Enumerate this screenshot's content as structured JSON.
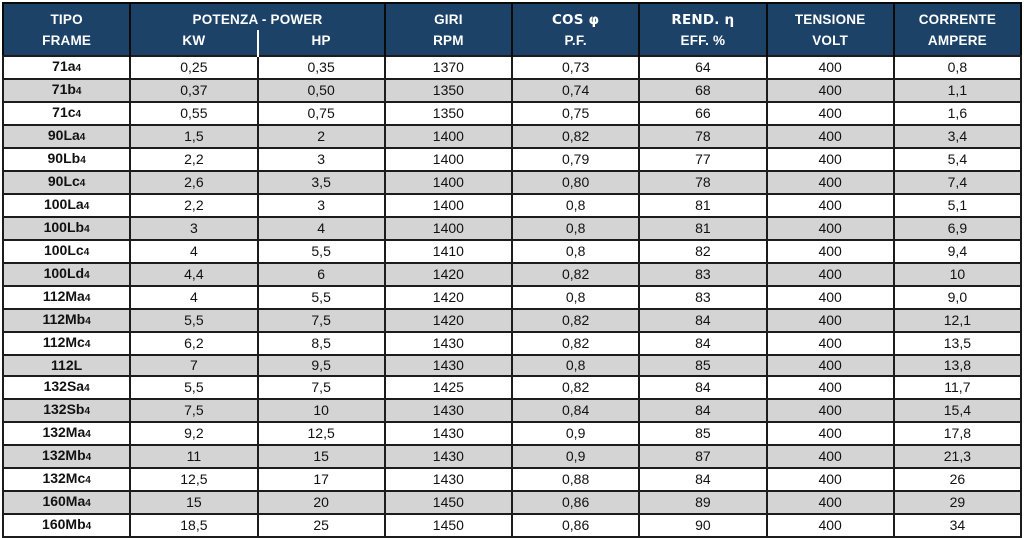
{
  "table": {
    "header": {
      "tipo": "TIPO",
      "frame": "FRAME",
      "power_group": "POTENZA - POWER",
      "kw": "KW",
      "hp": "HP",
      "giri": "GIRI",
      "rpm": "RPM",
      "cos": "COS φ",
      "pf": "P.F.",
      "rend": "REND. η",
      "eff": "EFF. %",
      "tensione": "TENSIONE",
      "volt": "VOLT",
      "corrente": "CORRENTE",
      "ampere": "AMPERE"
    },
    "rows": [
      {
        "frame": "71a",
        "frame_sub": "4",
        "kw": "0,25",
        "hp": "0,35",
        "rpm": "1370",
        "pf": "0,73",
        "eff": "64",
        "volt": "400",
        "amp": "0,8"
      },
      {
        "frame": "71b",
        "frame_sub": "4",
        "kw": "0,37",
        "hp": "0,50",
        "rpm": "1350",
        "pf": "0,74",
        "eff": "68",
        "volt": "400",
        "amp": "1,1"
      },
      {
        "frame": "71c",
        "frame_sub": "4",
        "kw": "0,55",
        "hp": "0,75",
        "rpm": "1350",
        "pf": "0,75",
        "eff": "66",
        "volt": "400",
        "amp": "1,6"
      },
      {
        "frame": "90La",
        "frame_sub": "4",
        "kw": "1,5",
        "hp": "2",
        "rpm": "1400",
        "pf": "0,82",
        "eff": "78",
        "volt": "400",
        "amp": "3,4"
      },
      {
        "frame": "90Lb",
        "frame_sub": "4",
        "kw": "2,2",
        "hp": "3",
        "rpm": "1400",
        "pf": "0,79",
        "eff": "77",
        "volt": "400",
        "amp": "5,4"
      },
      {
        "frame": "90Lc",
        "frame_sub": "4",
        "kw": "2,6",
        "hp": "3,5",
        "rpm": "1400",
        "pf": "0,80",
        "eff": "78",
        "volt": "400",
        "amp": "7,4"
      },
      {
        "frame": "100La",
        "frame_sub": "4",
        "kw": "2,2",
        "hp": "3",
        "rpm": "1400",
        "pf": "0,8",
        "eff": "81",
        "volt": "400",
        "amp": "5,1"
      },
      {
        "frame": "100Lb",
        "frame_sub": "4",
        "kw": "3",
        "hp": "4",
        "rpm": "1400",
        "pf": "0,8",
        "eff": "81",
        "volt": "400",
        "amp": "6,9"
      },
      {
        "frame": "100Lc",
        "frame_sub": "4",
        "kw": "4",
        "hp": "5,5",
        "rpm": "1410",
        "pf": "0,8",
        "eff": "82",
        "volt": "400",
        "amp": "9,4"
      },
      {
        "frame": "100Ld",
        "frame_sub": "4",
        "kw": "4,4",
        "hp": "6",
        "rpm": "1420",
        "pf": "0,82",
        "eff": "83",
        "volt": "400",
        "amp": "10"
      },
      {
        "frame": "112Ma",
        "frame_sub": "4",
        "kw": "4",
        "hp": "5,5",
        "rpm": "1420",
        "pf": "0,8",
        "eff": "83",
        "volt": "400",
        "amp": "9,0"
      },
      {
        "frame": "112Mb",
        "frame_sub": "4",
        "kw": "5,5",
        "hp": "7,5",
        "rpm": "1420",
        "pf": "0,82",
        "eff": "84",
        "volt": "400",
        "amp": "12,1"
      },
      {
        "frame": "112Mc",
        "frame_sub": "4",
        "kw": "6,2",
        "hp": "8,5",
        "rpm": "1430",
        "pf": "0,82",
        "eff": "84",
        "volt": "400",
        "amp": "13,5"
      },
      {
        "frame": "112L",
        "frame_sub": "",
        "kw": "7",
        "hp": "9,5",
        "rpm": "1430",
        "pf": "0,8",
        "eff": "85",
        "volt": "400",
        "amp": "13,8"
      },
      {
        "frame": "132Sa",
        "frame_sub": "4",
        "kw": "5,5",
        "hp": "7,5",
        "rpm": "1425",
        "pf": "0,82",
        "eff": "84",
        "volt": "400",
        "amp": "11,7"
      },
      {
        "frame": "132Sb",
        "frame_sub": "4",
        "kw": "7,5",
        "hp": "10",
        "rpm": "1430",
        "pf": "0,84",
        "eff": "84",
        "volt": "400",
        "amp": "15,4"
      },
      {
        "frame": "132Ma",
        "frame_sub": "4",
        "kw": "9,2",
        "hp": "12,5",
        "rpm": "1430",
        "pf": "0,9",
        "eff": "85",
        "volt": "400",
        "amp": "17,8"
      },
      {
        "frame": "132Mb",
        "frame_sub": "4",
        "kw": "11",
        "hp": "15",
        "rpm": "1430",
        "pf": "0,9",
        "eff": "87",
        "volt": "400",
        "amp": "21,3"
      },
      {
        "frame": "132Mc",
        "frame_sub": "4",
        "kw": "12,5",
        "hp": "17",
        "rpm": "1430",
        "pf": "0,88",
        "eff": "84",
        "volt": "400",
        "amp": "26"
      },
      {
        "frame": "160Ma",
        "frame_sub": "4",
        "kw": "15",
        "hp": "20",
        "rpm": "1450",
        "pf": "0,86",
        "eff": "89",
        "volt": "400",
        "amp": "29"
      },
      {
        "frame": "160Mb",
        "frame_sub": "4",
        "kw": "18,5",
        "hp": "25",
        "rpm": "1450",
        "pf": "0,86",
        "eff": "90",
        "volt": "400",
        "amp": "34"
      }
    ]
  },
  "colors": {
    "header_bg": "#1d4268",
    "header_text": "#ffffff",
    "alt_row_bg": "#d4d4d4",
    "border": "#0a0a0a"
  }
}
